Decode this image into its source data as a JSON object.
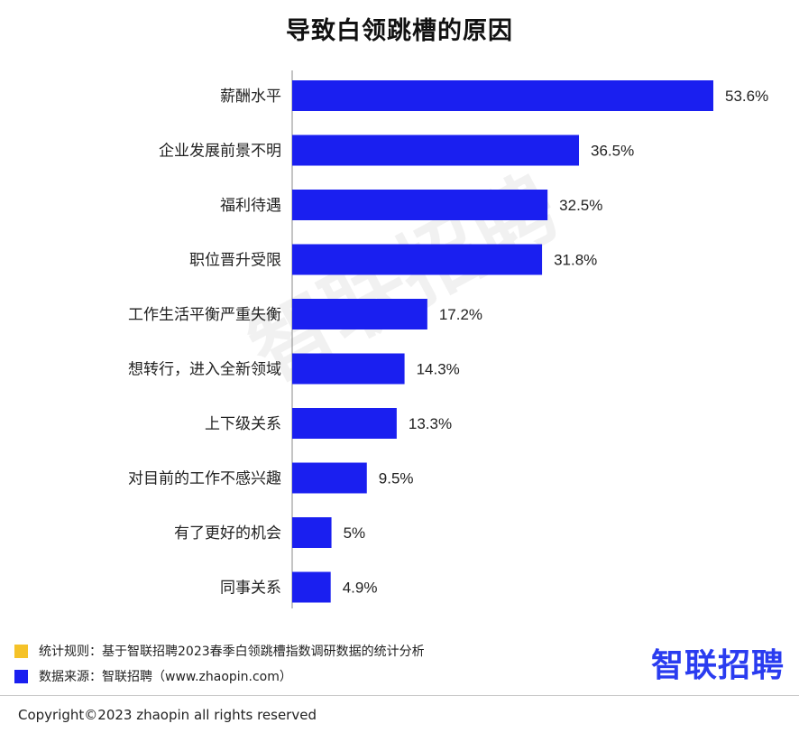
{
  "chart_data": {
    "type": "bar",
    "orientation": "horizontal",
    "title": "导致白领跳槽的原因",
    "categories": [
      "薪酬水平",
      "企业发展前景不明",
      "福利待遇",
      "职位晋升受限",
      "工作生活平衡严重失衡",
      "想转行，进入全新领域",
      "上下级关系",
      "对目前的工作不感兴趣",
      "有了更好的机会",
      "同事关系"
    ],
    "values": [
      53.6,
      36.5,
      32.5,
      31.8,
      17.2,
      14.3,
      13.3,
      9.5,
      5,
      4.9
    ],
    "value_labels": [
      "53.6%",
      "36.5%",
      "32.5%",
      "31.8%",
      "17.2%",
      "14.3%",
      "13.3%",
      "9.5%",
      "5%",
      "4.9%"
    ],
    "xlabel": "",
    "ylabel": "",
    "xlim": [
      0,
      53.6
    ],
    "grid": false,
    "bar_color": "#1a1ff0"
  },
  "watermark_text": "智联招聘",
  "legend": [
    {
      "color": "#f5c228",
      "text": "统计规则：基于智联招聘2023春季白领跳槽指数调研数据的统计分析"
    },
    {
      "color": "#1a1ff0",
      "text": "数据来源：智联招聘（www.zhaopin.com）"
    }
  ],
  "logo_text": "智联招聘",
  "copyright": "Copyright©2023 zhaopin all rights reserved"
}
